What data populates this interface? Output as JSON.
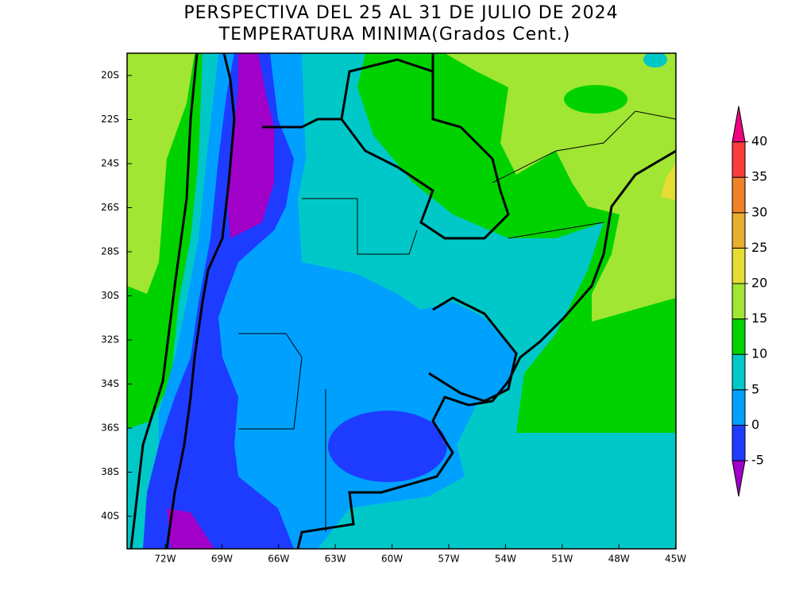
{
  "header": {
    "title": "PERSPECTIVA DEL 25 AL 31 DE JULIO DE 2024",
    "subtitle": "TEMPERATURA MINIMA(Grados Cent.)"
  },
  "map": {
    "lat_labels": [
      "20S",
      "22S",
      "24S",
      "26S",
      "28S",
      "30S",
      "32S",
      "34S",
      "36S",
      "38S",
      "40S"
    ],
    "lon_labels": [
      "72W",
      "69W",
      "66W",
      "63W",
      "60W",
      "57W",
      "54W",
      "51W",
      "48W",
      "45W"
    ]
  },
  "colorbar": {
    "levels": [
      -5,
      0,
      5,
      10,
      15,
      20,
      25,
      30,
      35,
      40
    ],
    "colors": [
      "#a000c8",
      "#1e3cff",
      "#00a0ff",
      "#00c8c8",
      "#00d200",
      "#a0e632",
      "#e6dc32",
      "#e6af2d",
      "#f08228",
      "#fa3c3c",
      "#f00082"
    ]
  }
}
